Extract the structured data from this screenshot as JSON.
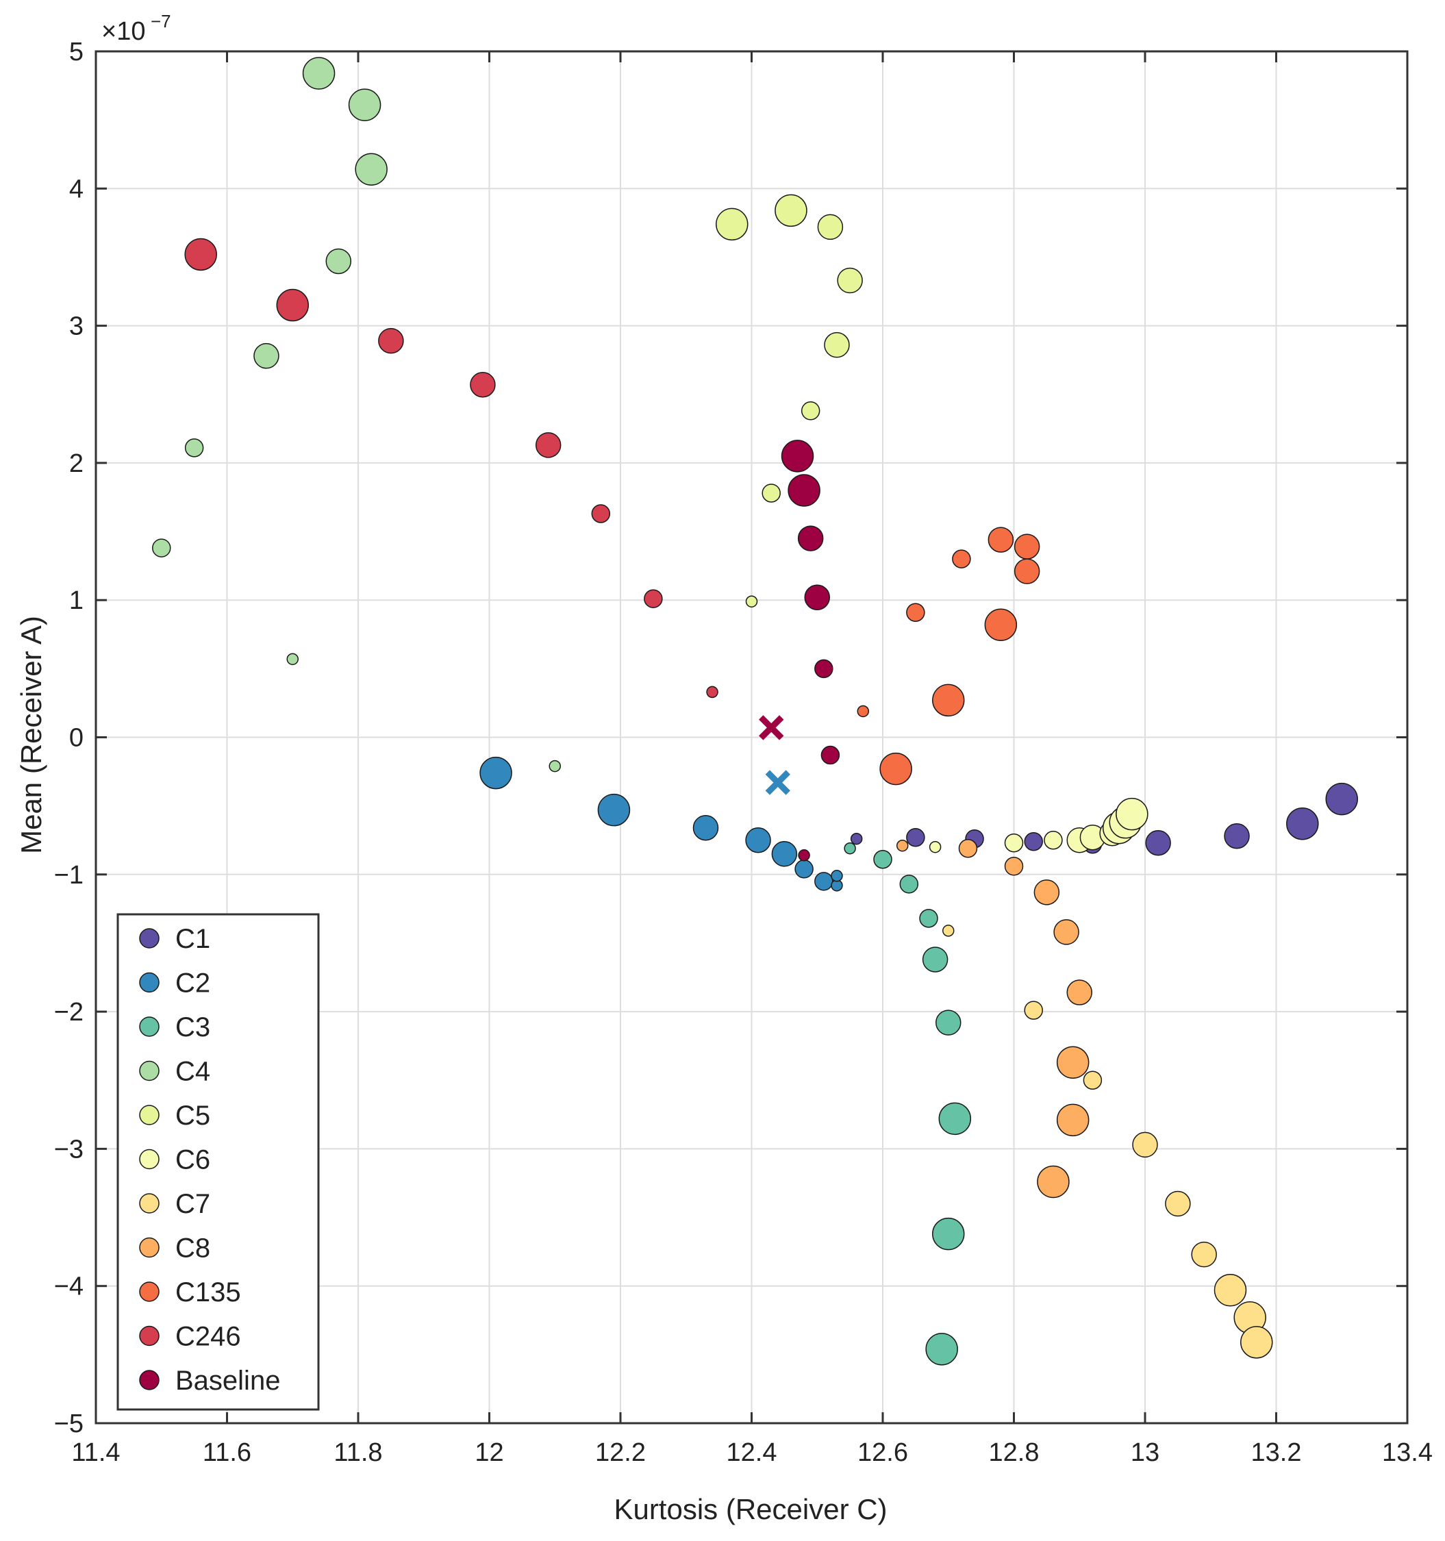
{
  "chart_data": {
    "type": "scatter",
    "title": "",
    "xlabel": "Kurtosis (Receiver C)",
    "ylabel": "Mean (Receiver A)",
    "exponent_label": "×10",
    "exponent_power": "−7",
    "xlim": [
      11.4,
      13.4
    ],
    "ylim": [
      -5,
      5
    ],
    "xticks": [
      11.4,
      11.6,
      11.8,
      12,
      12.2,
      12.4,
      12.6,
      12.8,
      13,
      13.2,
      13.4
    ],
    "xtick_labels": [
      "11.4",
      "11.6",
      "11.8",
      "12",
      "12.2",
      "12.4",
      "12.6",
      "12.8",
      "13",
      "13.2",
      "13.4"
    ],
    "yticks": [
      -5,
      -4,
      -3,
      -2,
      -1,
      0,
      1,
      2,
      3,
      4,
      5
    ],
    "ytick_labels": [
      "−5",
      "−4",
      "−3",
      "−2",
      "−1",
      "0",
      "1",
      "2",
      "3",
      "4",
      "5"
    ],
    "grid": true,
    "legend_position": "bottom-left",
    "series": [
      {
        "name": "C1",
        "color": "#5e4fa2",
        "points": [
          [
            12.56,
            -0.74,
            1
          ],
          [
            12.65,
            -0.73,
            2
          ],
          [
            12.74,
            -0.74,
            2
          ],
          [
            12.83,
            -0.76,
            2
          ],
          [
            12.92,
            -0.78,
            2
          ],
          [
            13.02,
            -0.77,
            3
          ],
          [
            13.14,
            -0.72,
            3
          ],
          [
            13.24,
            -0.63,
            4
          ],
          [
            13.3,
            -0.45,
            4
          ]
        ]
      },
      {
        "name": "C2",
        "color": "#3288bd",
        "points": [
          [
            12.01,
            -0.26,
            4
          ],
          [
            12.19,
            -0.53,
            4
          ],
          [
            12.33,
            -0.66,
            3
          ],
          [
            12.41,
            -0.75,
            3
          ],
          [
            12.45,
            -0.85,
            3
          ],
          [
            12.48,
            -0.96,
            2
          ],
          [
            12.51,
            -1.05,
            2
          ],
          [
            12.53,
            -1.08,
            1
          ],
          [
            12.53,
            -1.01,
            1
          ]
        ]
      },
      {
        "name": "C3",
        "color": "#66c2a5",
        "points": [
          [
            12.55,
            -0.81,
            1
          ],
          [
            12.6,
            -0.89,
            2
          ],
          [
            12.64,
            -1.07,
            2
          ],
          [
            12.67,
            -1.32,
            2
          ],
          [
            12.68,
            -1.62,
            3
          ],
          [
            12.7,
            -2.08,
            3
          ],
          [
            12.71,
            -2.78,
            4
          ],
          [
            12.7,
            -3.62,
            4
          ],
          [
            12.69,
            -4.46,
            4
          ]
        ]
      },
      {
        "name": "C4",
        "color": "#abdda4",
        "points": [
          [
            12.1,
            -0.21,
            1
          ],
          [
            11.7,
            0.57,
            1
          ],
          [
            11.5,
            1.38,
            2
          ],
          [
            11.55,
            2.11,
            2
          ],
          [
            11.66,
            2.78,
            3
          ],
          [
            11.77,
            3.47,
            3
          ],
          [
            11.82,
            4.14,
            4
          ],
          [
            11.81,
            4.61,
            4
          ],
          [
            11.74,
            4.84,
            4
          ]
        ]
      },
      {
        "name": "C5",
        "color": "#e6f598",
        "points": [
          [
            12.4,
            0.99,
            1
          ],
          [
            12.43,
            1.78,
            2
          ],
          [
            12.49,
            2.38,
            2
          ],
          [
            12.53,
            2.86,
            3
          ],
          [
            12.55,
            3.33,
            3
          ],
          [
            12.52,
            3.72,
            3
          ],
          [
            12.46,
            3.84,
            4
          ],
          [
            12.37,
            3.74,
            4
          ]
        ]
      },
      {
        "name": "C6",
        "color": "#f6fbb2",
        "points": [
          [
            12.68,
            -0.8,
            1
          ],
          [
            12.8,
            -0.77,
            2
          ],
          [
            12.86,
            -0.75,
            2
          ],
          [
            12.9,
            -0.75,
            3
          ],
          [
            12.92,
            -0.73,
            3
          ],
          [
            12.95,
            -0.7,
            3
          ],
          [
            12.96,
            -0.66,
            4
          ],
          [
            12.97,
            -0.62,
            4
          ],
          [
            12.98,
            -0.56,
            4
          ]
        ]
      },
      {
        "name": "C7",
        "color": "#fee08b",
        "points": [
          [
            12.7,
            -1.41,
            1
          ],
          [
            12.83,
            -1.99,
            2
          ],
          [
            12.92,
            -2.5,
            2
          ],
          [
            13.0,
            -2.97,
            3
          ],
          [
            13.05,
            -3.4,
            3
          ],
          [
            13.09,
            -3.77,
            3
          ],
          [
            13.13,
            -4.03,
            4
          ],
          [
            13.16,
            -4.23,
            4
          ],
          [
            13.17,
            -4.41,
            4
          ]
        ]
      },
      {
        "name": "C8",
        "color": "#fdae61",
        "points": [
          [
            12.63,
            -0.79,
            1
          ],
          [
            12.73,
            -0.81,
            2
          ],
          [
            12.8,
            -0.94,
            2
          ],
          [
            12.85,
            -1.13,
            3
          ],
          [
            12.88,
            -1.42,
            3
          ],
          [
            12.9,
            -1.86,
            3
          ],
          [
            12.89,
            -2.37,
            4
          ],
          [
            12.89,
            -2.79,
            4
          ],
          [
            12.86,
            -3.24,
            4
          ]
        ]
      },
      {
        "name": "C135",
        "color": "#f46d43",
        "points": [
          [
            12.57,
            0.19,
            1
          ],
          [
            12.65,
            0.91,
            2
          ],
          [
            12.72,
            1.3,
            2
          ],
          [
            12.78,
            1.44,
            3
          ],
          [
            12.82,
            1.39,
            3
          ],
          [
            12.82,
            1.21,
            3
          ],
          [
            12.78,
            0.82,
            4
          ],
          [
            12.7,
            0.27,
            4
          ],
          [
            12.62,
            -0.23,
            4
          ]
        ]
      },
      {
        "name": "C246",
        "color": "#d53e4f",
        "points": [
          [
            12.34,
            0.33,
            1
          ],
          [
            12.25,
            1.01,
            2
          ],
          [
            12.17,
            1.63,
            2
          ],
          [
            12.09,
            2.13,
            3
          ],
          [
            11.99,
            2.57,
            3
          ],
          [
            11.85,
            2.89,
            3
          ],
          [
            11.7,
            3.15,
            4
          ],
          [
            11.56,
            3.52,
            4
          ]
        ]
      },
      {
        "name": "Baseline",
        "color": "#9e0142",
        "points": [
          [
            12.48,
            -0.86,
            1
          ],
          [
            12.52,
            -0.13,
            2
          ],
          [
            12.51,
            0.5,
            2
          ],
          [
            12.5,
            1.02,
            3
          ],
          [
            12.49,
            1.45,
            3
          ],
          [
            12.48,
            1.8,
            4
          ],
          [
            12.47,
            2.05,
            4
          ]
        ]
      }
    ],
    "markers": [
      {
        "name": "baseline-centroid",
        "symbol": "x",
        "color": "#9e0142",
        "x": 12.43,
        "y": 0.07
      },
      {
        "name": "c2-centroid",
        "symbol": "x",
        "color": "#3288bd",
        "x": 12.44,
        "y": -0.33
      }
    ],
    "legend_labels": [
      "C1",
      "C2",
      "C3",
      "C4",
      "C5",
      "C6",
      "C7",
      "C8",
      "C135",
      "C246",
      "Baseline"
    ]
  }
}
